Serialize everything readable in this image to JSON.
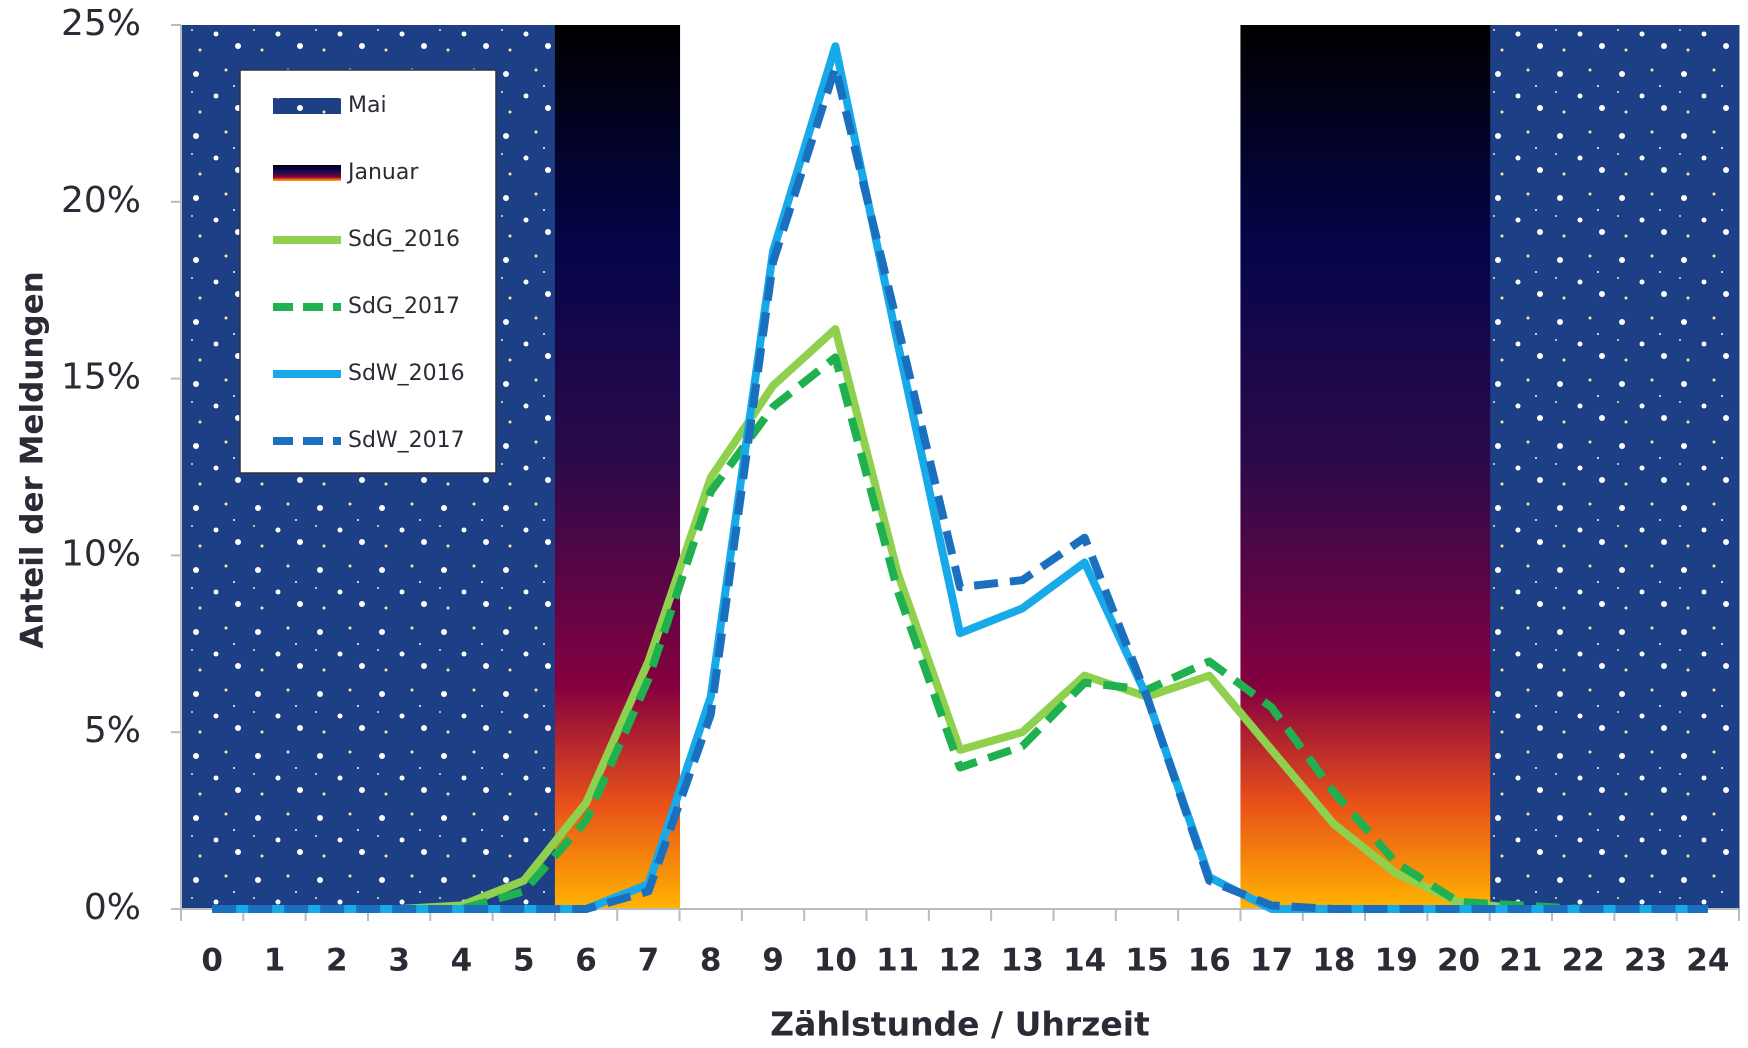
{
  "chart_data": {
    "type": "line",
    "y_axis_label": "Anteil der Meldungen",
    "x_axis_label": "Zählstunde / Uhrzeit",
    "categories": [
      "0",
      "1",
      "2",
      "3",
      "4",
      "5",
      "6",
      "7",
      "8",
      "9",
      "10",
      "11",
      "12",
      "13",
      "14",
      "15",
      "16",
      "17",
      "18",
      "19",
      "20",
      "21",
      "22",
      "23",
      "24"
    ],
    "ylim": [
      0,
      25
    ],
    "yticks": [
      {
        "value": 0,
        "label": "0%"
      },
      {
        "value": 5,
        "label": "5%"
      },
      {
        "value": 10,
        "label": "10%"
      },
      {
        "value": 15,
        "label": "15%"
      },
      {
        "value": 20,
        "label": "20%"
      },
      {
        "value": 25,
        "label": "25%"
      }
    ],
    "background_bands": [
      {
        "name": "Mai",
        "fill": "stars",
        "categories": [
          "0",
          "1",
          "2",
          "3",
          "4",
          "5",
          "21",
          "22",
          "23",
          "24"
        ]
      },
      {
        "name": "Januar",
        "fill": "gradient",
        "categories": [
          "6",
          "7",
          "17",
          "18",
          "19",
          "20"
        ]
      }
    ],
    "series": [
      {
        "name": "SdG_2016",
        "color": "#8fd14f",
        "dashed": false,
        "values": [
          0,
          0,
          0,
          0,
          0.1,
          0.8,
          3.0,
          7.0,
          12.2,
          14.8,
          16.4,
          9.5,
          4.5,
          5.0,
          6.6,
          6.0,
          6.6,
          4.5,
          2.4,
          1.0,
          0.2,
          0,
          0,
          0,
          0
        ]
      },
      {
        "name": "SdG_2017",
        "color": "#1fb14f",
        "dashed": true,
        "values": [
          0,
          0,
          0,
          0,
          0,
          0.5,
          2.5,
          6.5,
          11.8,
          14.2,
          15.6,
          9.0,
          4.0,
          4.6,
          6.4,
          6.2,
          7.0,
          5.7,
          3.3,
          1.3,
          0.2,
          0.1,
          0,
          0,
          0
        ]
      },
      {
        "name": "SdW_2016",
        "color": "#17a9e8",
        "dashed": false,
        "values": [
          0,
          0,
          0,
          0,
          0,
          0,
          0,
          0.7,
          6.0,
          18.6,
          24.4,
          16.0,
          7.8,
          8.5,
          9.8,
          6.0,
          0.9,
          0,
          0,
          0,
          0,
          0,
          0,
          0,
          0
        ]
      },
      {
        "name": "SdW_2017",
        "color": "#1b6fbf",
        "dashed": true,
        "values": [
          0,
          0,
          0,
          0,
          0,
          0,
          0,
          0.5,
          5.5,
          18.3,
          23.8,
          16.5,
          9.1,
          9.3,
          10.5,
          6.0,
          0.8,
          0.1,
          0,
          0,
          0,
          0,
          0,
          0,
          0
        ]
      }
    ]
  }
}
